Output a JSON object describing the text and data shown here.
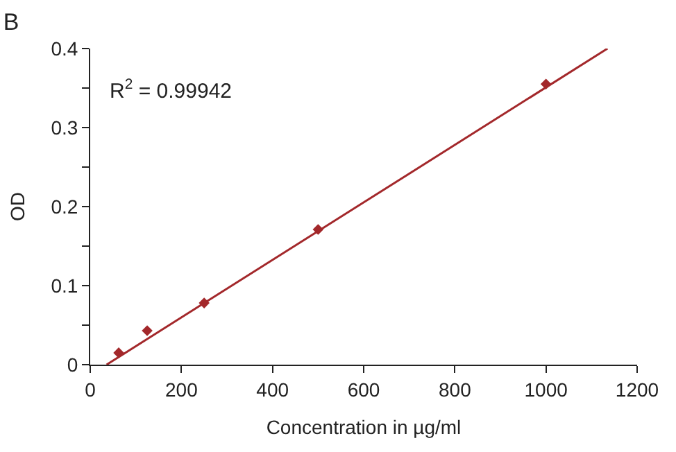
{
  "chart_data": {
    "type": "scatter",
    "title": "B",
    "xlabel": "Concentration in µg/ml",
    "ylabel": "OD",
    "annotations": [
      "R$^{2}$ = 0.99942"
    ],
    "xlim": [
      0,
      1200
    ],
    "xticks": [
      0,
      200,
      400,
      600,
      800,
      1000,
      1200
    ],
    "ylim": [
      0,
      0.4
    ],
    "yticks": [
      0,
      {
        "value": 0.05,
        "label": null
      },
      0.1,
      {
        "value": 0.15,
        "label": null
      },
      0.2,
      {
        "value": 0.25,
        "label": null
      },
      0.3,
      {
        "value": 0.35,
        "label": null
      },
      0.4
    ],
    "series": [
      {
        "color": "#a3282b",
        "marker": "diamond",
        "x": [
          62.5,
          125,
          250,
          500,
          1000
        ],
        "values": [
          0.015,
          0.043,
          0.078,
          0.171,
          0.355
        ]
      },
      {
        "type": "line",
        "color": "#a3282b",
        "line_style": "solid",
        "marker": "none",
        "x": [
          36,
          1135
        ],
        "values": [
          0,
          0.4
        ]
      }
    ]
  }
}
